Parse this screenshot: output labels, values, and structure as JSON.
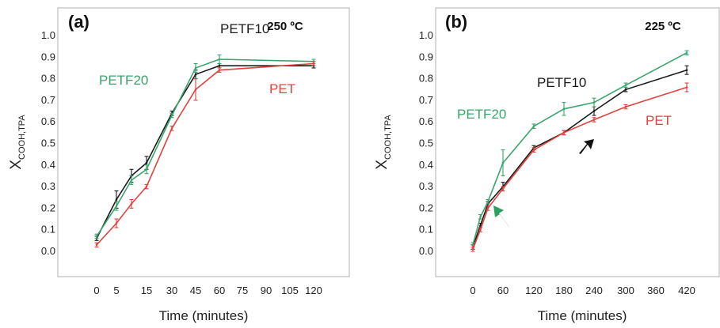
{
  "chart_data": [
    {
      "type": "line",
      "panel_label": "(a)",
      "temperature": "250 ºC",
      "xlabel": "Time (minutes)",
      "ylabel_main": "X",
      "ylabel_sub": "COOH,TPA",
      "ylim": [
        0.0,
        1.0
      ],
      "yticks": [
        "0.0",
        "0.1",
        "0.2",
        "0.3",
        "0.4",
        "0.5",
        "0.6",
        "0.7",
        "0.8",
        "0.9",
        "1.0"
      ],
      "xticks": [
        "0",
        "5",
        "15",
        "30",
        "45",
        "60",
        "75",
        "90",
        "105",
        "120"
      ],
      "x": [
        0,
        5,
        10,
        15,
        30,
        45,
        60,
        120
      ],
      "grid": false,
      "series": [
        {
          "name": "PETF10",
          "color": "#1a1a1a",
          "values": [
            0.06,
            0.24,
            0.35,
            0.41,
            0.64,
            0.82,
            0.86,
            0.86
          ],
          "errors": [
            0.01,
            0.04,
            0.03,
            0.03,
            0.01,
            0.02,
            0.01,
            0.01
          ]
        },
        {
          "name": "PETF20",
          "color": "#3aa56b",
          "values": [
            0.07,
            0.21,
            0.33,
            0.38,
            0.63,
            0.85,
            0.89,
            0.88
          ],
          "errors": [
            0.01,
            0.02,
            0.02,
            0.02,
            0.01,
            0.02,
            0.02,
            0.01
          ]
        },
        {
          "name": "PET",
          "color": "#e2423f",
          "values": [
            0.03,
            0.13,
            0.22,
            0.3,
            0.57,
            0.75,
            0.84,
            0.87
          ],
          "errors": [
            0.01,
            0.02,
            0.02,
            0.01,
            0.01,
            0.05,
            0.01,
            0.01
          ]
        }
      ]
    },
    {
      "type": "line",
      "panel_label": "(b)",
      "temperature": "225 ºC",
      "xlabel": "Time (minutes)",
      "ylabel_main": "X",
      "ylabel_sub": "COOH,TPA",
      "ylim": [
        0.0,
        1.0
      ],
      "yticks": [
        "0.0",
        "0.1",
        "0.2",
        "0.3",
        "0.4",
        "0.5",
        "0.6",
        "0.7",
        "0.8",
        "0.9",
        "1.0"
      ],
      "xticks": [
        "0",
        "60",
        "120",
        "180",
        "240",
        "300",
        "360",
        "420"
      ],
      "x": [
        0,
        15,
        30,
        60,
        120,
        180,
        240,
        300,
        420
      ],
      "grid": false,
      "series": [
        {
          "name": "PETF10",
          "color": "#1a1a1a",
          "values": [
            0.02,
            0.12,
            0.22,
            0.3,
            0.48,
            0.55,
            0.65,
            0.75,
            0.84
          ],
          "errors": [
            0.01,
            0.01,
            0.01,
            0.02,
            0.01,
            0.01,
            0.02,
            0.01,
            0.02
          ]
        },
        {
          "name": "PETF20",
          "color": "#3aa56b",
          "values": [
            0.03,
            0.16,
            0.23,
            0.41,
            0.58,
            0.66,
            0.69,
            0.77,
            0.92
          ],
          "errors": [
            0.01,
            0.01,
            0.01,
            0.06,
            0.01,
            0.03,
            0.02,
            0.01,
            0.01
          ]
        },
        {
          "name": "PET",
          "color": "#e2423f",
          "values": [
            0.01,
            0.1,
            0.2,
            0.29,
            0.47,
            0.55,
            0.61,
            0.67,
            0.76
          ],
          "errors": [
            0.01,
            0.01,
            0.01,
            0.01,
            0.01,
            0.01,
            0.01,
            0.01,
            0.02
          ]
        }
      ]
    }
  ]
}
